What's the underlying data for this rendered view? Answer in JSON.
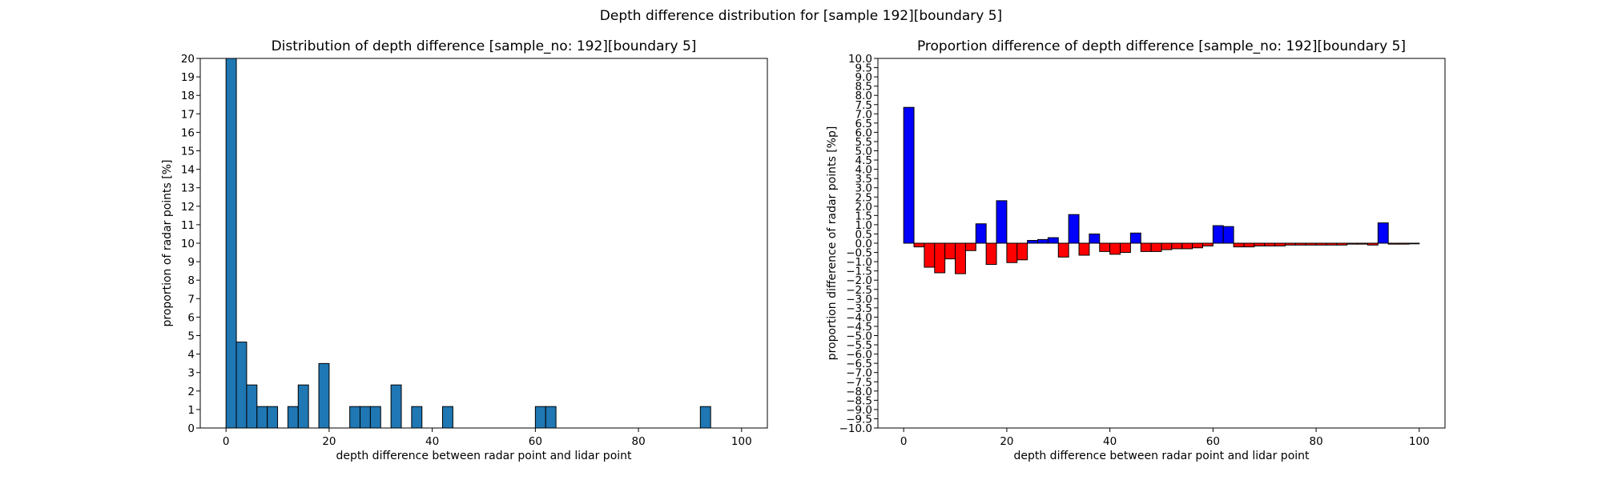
{
  "figure_title": "Depth difference distribution for [sample 192][boundary 5]",
  "chart_data": [
    {
      "type": "bar",
      "title": "Distribution of depth difference [sample_no: 192][boundary 5]",
      "xlabel": "depth difference between radar point and lidar point",
      "ylabel": "proportion of radar points [%]",
      "xlim": [
        -5,
        105
      ],
      "ylim": [
        0,
        20
      ],
      "x_ticks": [
        0,
        20,
        40,
        60,
        80,
        100
      ],
      "y_ticks": [
        0,
        1,
        2,
        3,
        4,
        5,
        6,
        7,
        8,
        9,
        10,
        11,
        12,
        13,
        14,
        15,
        16,
        17,
        18,
        19,
        20
      ],
      "bin_width": 2,
      "bar_color": "#1f77b4",
      "bins": [
        0,
        2,
        4,
        6,
        8,
        10,
        12,
        14,
        16,
        18,
        20,
        22,
        24,
        26,
        28,
        30,
        32,
        34,
        36,
        38,
        40,
        42,
        44,
        46,
        48,
        50,
        52,
        54,
        56,
        58,
        60,
        62,
        64,
        66,
        68,
        70,
        72,
        74,
        76,
        78,
        80,
        82,
        84,
        86,
        88,
        90,
        92,
        94,
        96,
        98
      ],
      "values": [
        20.0,
        4.65,
        2.33,
        1.16,
        1.16,
        0,
        1.16,
        2.33,
        0,
        3.49,
        0,
        0,
        1.16,
        1.16,
        1.16,
        0,
        2.33,
        0,
        1.16,
        0,
        0,
        1.16,
        0,
        0,
        0,
        0,
        0,
        0,
        0,
        0,
        1.16,
        1.16,
        0,
        0,
        0,
        0,
        0,
        0,
        0,
        0,
        0,
        0,
        0,
        0,
        0,
        0,
        1.16,
        0,
        0,
        0
      ]
    },
    {
      "type": "bar",
      "title": "Proportion difference of depth difference [sample_no: 192][boundary 5]",
      "xlabel": "depth difference between radar point and lidar point",
      "ylabel": "proportion difference of radar points [%p]",
      "xlim": [
        -5,
        105
      ],
      "ylim": [
        -10,
        10
      ],
      "x_ticks": [
        0,
        20,
        40,
        60,
        80,
        100
      ],
      "y_ticks": [
        10.0,
        9.5,
        9.0,
        8.5,
        8.0,
        7.5,
        7.0,
        6.5,
        6.0,
        5.5,
        5.0,
        4.5,
        4.0,
        3.5,
        3.0,
        2.5,
        2.0,
        1.5,
        1.0,
        0.5,
        0.0,
        -0.5,
        -1.0,
        -1.5,
        -2.0,
        -2.5,
        -3.0,
        -3.5,
        -4.0,
        -4.5,
        -5.0,
        -5.5,
        -6.0,
        -6.5,
        -7.0,
        -7.5,
        -8.0,
        -8.5,
        -9.0,
        -9.5,
        -10.0
      ],
      "bin_width": 2,
      "positive_color": "#0000ff",
      "negative_color": "#ff0000",
      "bins": [
        0,
        2,
        4,
        6,
        8,
        10,
        12,
        14,
        16,
        18,
        20,
        22,
        24,
        26,
        28,
        30,
        32,
        34,
        36,
        38,
        40,
        42,
        44,
        46,
        48,
        50,
        52,
        54,
        56,
        58,
        60,
        62,
        64,
        66,
        68,
        70,
        72,
        74,
        76,
        78,
        80,
        82,
        84,
        86,
        88,
        90,
        92,
        94,
        96,
        98
      ],
      "values": [
        7.35,
        -0.2,
        -1.3,
        -1.6,
        -0.85,
        -1.65,
        -0.4,
        1.05,
        -1.15,
        2.3,
        -1.05,
        -0.9,
        0.15,
        0.2,
        0.3,
        -0.75,
        1.55,
        -0.65,
        0.5,
        -0.45,
        -0.6,
        -0.5,
        0.55,
        -0.45,
        -0.45,
        -0.35,
        -0.3,
        -0.3,
        -0.25,
        -0.15,
        0.95,
        0.9,
        -0.2,
        -0.2,
        -0.15,
        -0.15,
        -0.15,
        -0.1,
        -0.1,
        -0.1,
        -0.1,
        -0.1,
        -0.1,
        -0.05,
        -0.05,
        -0.1,
        1.1,
        -0.05,
        -0.05,
        0.0
      ]
    }
  ]
}
